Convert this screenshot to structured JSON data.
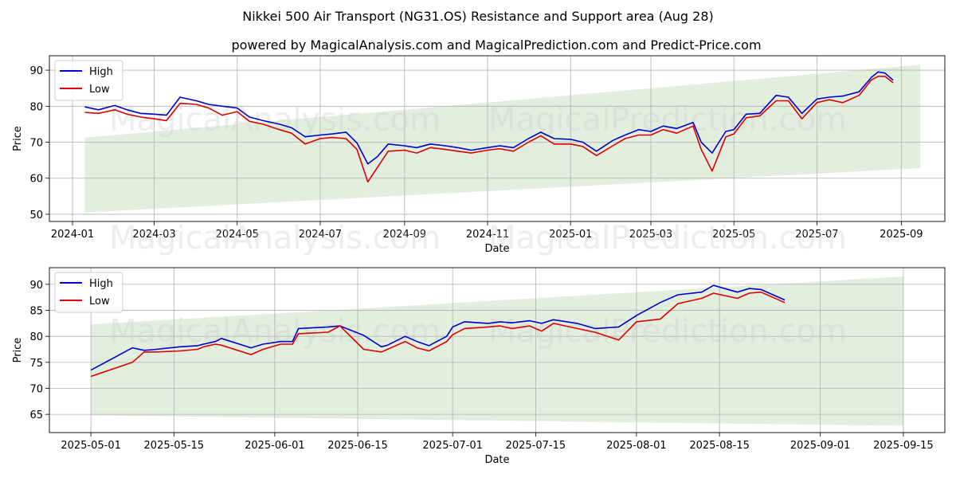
{
  "title": "Nikkei 500 Air Transport (NG31.OS) Resistance and Support area (Aug 28)",
  "subtitle": "powered by MagicalAnalysis.com and MagicalPrediction.com and Predict-Price.com",
  "watermarks": [
    "MagicalAnalysis.com",
    "MagicalPrediction.com"
  ],
  "colors": {
    "high": "#0000cc",
    "low": "#dd0000",
    "band": "#d9ead3"
  },
  "chart_data": [
    {
      "type": "line",
      "xlabel": "Date",
      "ylabel": "Price",
      "legend_position": "top-left",
      "grid": true,
      "xlim": [
        "2023-12-15",
        "2025-10-03"
      ],
      "ylim": [
        48,
        94
      ],
      "x_ticks": [
        "2024-01",
        "2024-03",
        "2024-05",
        "2024-07",
        "2024-09",
        "2024-11",
        "2025-01",
        "2025-03",
        "2025-05",
        "2025-07",
        "2025-09"
      ],
      "y_ticks": [
        50,
        60,
        70,
        80,
        90
      ],
      "band": {
        "x": [
          "2024-01-10",
          "2025-09-15"
        ],
        "upper": [
          71.3,
          91.5
        ],
        "lower": [
          50.5,
          62.8
        ]
      },
      "series": [
        {
          "name": "High",
          "x": [
            "2024-01-10",
            "2024-01-20",
            "2024-02-01",
            "2024-02-10",
            "2024-02-20",
            "2024-03-01",
            "2024-03-10",
            "2024-03-20",
            "2024-04-01",
            "2024-04-10",
            "2024-04-20",
            "2024-05-01",
            "2024-05-10",
            "2024-05-20",
            "2024-06-01",
            "2024-06-10",
            "2024-06-20",
            "2024-07-01",
            "2024-07-10",
            "2024-07-20",
            "2024-07-28",
            "2024-08-05",
            "2024-08-12",
            "2024-08-20",
            "2024-09-01",
            "2024-09-10",
            "2024-09-20",
            "2024-10-01",
            "2024-10-10",
            "2024-10-20",
            "2024-11-01",
            "2024-11-10",
            "2024-11-20",
            "2024-12-01",
            "2024-12-10",
            "2024-12-20",
            "2025-01-01",
            "2025-01-10",
            "2025-01-20",
            "2025-02-01",
            "2025-02-10",
            "2025-02-20",
            "2025-03-01",
            "2025-03-10",
            "2025-03-20",
            "2025-04-01",
            "2025-04-07",
            "2025-04-15",
            "2025-04-25",
            "2025-05-01",
            "2025-05-10",
            "2025-05-20",
            "2025-06-01",
            "2025-06-10",
            "2025-06-20",
            "2025-07-01",
            "2025-07-10",
            "2025-07-20",
            "2025-08-01",
            "2025-08-10",
            "2025-08-15",
            "2025-08-20",
            "2025-08-26"
          ],
          "values": [
            79.8,
            79.0,
            80.2,
            79.0,
            78.0,
            77.8,
            77.5,
            82.5,
            81.5,
            80.5,
            80.0,
            79.5,
            77.0,
            76.0,
            75.0,
            74.0,
            71.5,
            72.0,
            72.3,
            72.8,
            69.8,
            64.0,
            66.0,
            69.5,
            69.0,
            68.5,
            69.5,
            69.0,
            68.5,
            67.8,
            68.5,
            69.0,
            68.5,
            71.0,
            72.8,
            71.0,
            70.8,
            70.0,
            67.5,
            70.5,
            72.0,
            73.5,
            73.0,
            74.5,
            73.8,
            75.5,
            70.0,
            67.0,
            73.0,
            73.5,
            77.8,
            78.0,
            83.0,
            82.5,
            78.0,
            82.0,
            82.5,
            82.8,
            84.0,
            88.0,
            89.5,
            89.2,
            87.2
          ]
        },
        {
          "name": "Low",
          "x": [
            "2024-01-10",
            "2024-01-20",
            "2024-02-01",
            "2024-02-10",
            "2024-02-20",
            "2024-03-01",
            "2024-03-10",
            "2024-03-20",
            "2024-04-01",
            "2024-04-10",
            "2024-04-20",
            "2024-05-01",
            "2024-05-10",
            "2024-05-20",
            "2024-06-01",
            "2024-06-10",
            "2024-06-20",
            "2024-07-01",
            "2024-07-10",
            "2024-07-20",
            "2024-07-28",
            "2024-08-05",
            "2024-08-12",
            "2024-08-20",
            "2024-09-01",
            "2024-09-10",
            "2024-09-20",
            "2024-10-01",
            "2024-10-10",
            "2024-10-20",
            "2024-11-01",
            "2024-11-10",
            "2024-11-20",
            "2024-12-01",
            "2024-12-10",
            "2024-12-20",
            "2025-01-01",
            "2025-01-10",
            "2025-01-20",
            "2025-02-01",
            "2025-02-10",
            "2025-02-20",
            "2025-03-01",
            "2025-03-10",
            "2025-03-20",
            "2025-04-01",
            "2025-04-07",
            "2025-04-15",
            "2025-04-25",
            "2025-05-01",
            "2025-05-10",
            "2025-05-20",
            "2025-06-01",
            "2025-06-10",
            "2025-06-20",
            "2025-07-01",
            "2025-07-10",
            "2025-07-20",
            "2025-08-01",
            "2025-08-10",
            "2025-08-15",
            "2025-08-20",
            "2025-08-26"
          ],
          "values": [
            78.3,
            78.0,
            79.0,
            77.8,
            77.0,
            76.5,
            76.0,
            80.8,
            80.5,
            79.5,
            77.5,
            78.5,
            75.8,
            75.0,
            73.5,
            72.5,
            69.5,
            71.0,
            71.3,
            71.0,
            68.0,
            59.0,
            63.0,
            67.5,
            67.8,
            67.0,
            68.5,
            68.0,
            67.5,
            67.0,
            67.8,
            68.2,
            67.5,
            70.0,
            71.8,
            69.5,
            69.5,
            68.8,
            66.3,
            69.0,
            71.0,
            72.0,
            72.0,
            73.5,
            72.5,
            74.5,
            68.0,
            62.0,
            71.5,
            72.3,
            76.8,
            77.3,
            81.5,
            81.5,
            76.5,
            81.0,
            81.8,
            81.0,
            83.0,
            87.3,
            88.3,
            88.3,
            86.5
          ]
        }
      ]
    },
    {
      "type": "line",
      "xlabel": "Date",
      "ylabel": "Price",
      "legend_position": "top-left",
      "grid": true,
      "xlim": [
        "2025-04-24",
        "2025-09-22"
      ],
      "ylim": [
        61.5,
        93.2
      ],
      "x_ticks": [
        "2025-05-01",
        "2025-05-15",
        "2025-06-01",
        "2025-06-15",
        "2025-07-01",
        "2025-07-15",
        "2025-08-01",
        "2025-08-15",
        "2025-09-01",
        "2025-09-15"
      ],
      "y_ticks": [
        65,
        70,
        75,
        80,
        85,
        90
      ],
      "band": {
        "x": [
          "2025-05-01",
          "2025-09-15"
        ],
        "upper": [
          82.3,
          91.5
        ],
        "lower": [
          64.8,
          62.8
        ]
      },
      "series": [
        {
          "name": "High",
          "x": [
            "2025-05-01",
            "2025-05-08",
            "2025-05-10",
            "2025-05-12",
            "2025-05-16",
            "2025-05-19",
            "2025-05-20",
            "2025-05-22",
            "2025-05-23",
            "2025-05-28",
            "2025-05-30",
            "2025-06-02",
            "2025-06-04",
            "2025-06-05",
            "2025-06-10",
            "2025-06-12",
            "2025-06-16",
            "2025-06-19",
            "2025-06-20",
            "2025-06-23",
            "2025-06-25",
            "2025-06-27",
            "2025-06-30",
            "2025-07-01",
            "2025-07-03",
            "2025-07-07",
            "2025-07-09",
            "2025-07-11",
            "2025-07-14",
            "2025-07-16",
            "2025-07-18",
            "2025-07-22",
            "2025-07-25",
            "2025-07-29",
            "2025-08-01",
            "2025-08-05",
            "2025-08-08",
            "2025-08-12",
            "2025-08-14",
            "2025-08-18",
            "2025-08-20",
            "2025-08-22",
            "2025-08-26"
          ],
          "values": [
            73.5,
            77.8,
            77.3,
            77.5,
            78.0,
            78.2,
            78.5,
            79.0,
            79.6,
            77.8,
            78.5,
            79.0,
            79.0,
            81.5,
            81.8,
            82.0,
            80.2,
            78.0,
            78.3,
            80.0,
            79.0,
            78.2,
            80.0,
            81.8,
            82.8,
            82.5,
            82.8,
            82.6,
            83.0,
            82.5,
            83.2,
            82.5,
            81.5,
            81.8,
            84.0,
            86.5,
            88.0,
            88.5,
            89.8,
            88.5,
            89.2,
            89.0,
            87.0
          ]
        },
        {
          "name": "Low",
          "x": [
            "2025-05-01",
            "2025-05-08",
            "2025-05-10",
            "2025-05-12",
            "2025-05-16",
            "2025-05-19",
            "2025-05-20",
            "2025-05-22",
            "2025-05-23",
            "2025-05-28",
            "2025-05-30",
            "2025-06-02",
            "2025-06-04",
            "2025-06-05",
            "2025-06-10",
            "2025-06-12",
            "2025-06-16",
            "2025-06-19",
            "2025-06-20",
            "2025-06-23",
            "2025-06-25",
            "2025-06-27",
            "2025-06-30",
            "2025-07-01",
            "2025-07-03",
            "2025-07-07",
            "2025-07-09",
            "2025-07-11",
            "2025-07-14",
            "2025-07-16",
            "2025-07-18",
            "2025-07-22",
            "2025-07-25",
            "2025-07-29",
            "2025-08-01",
            "2025-08-05",
            "2025-08-08",
            "2025-08-12",
            "2025-08-14",
            "2025-08-18",
            "2025-08-20",
            "2025-08-22",
            "2025-08-26"
          ],
          "values": [
            72.3,
            75.0,
            77.0,
            77.0,
            77.2,
            77.5,
            78.0,
            78.5,
            78.3,
            76.5,
            77.5,
            78.5,
            78.5,
            80.5,
            80.8,
            82.0,
            77.5,
            77.0,
            77.5,
            79.0,
            77.8,
            77.2,
            79.0,
            80.3,
            81.5,
            81.8,
            82.0,
            81.5,
            82.0,
            81.0,
            82.5,
            81.5,
            80.8,
            79.3,
            82.8,
            83.3,
            86.3,
            87.3,
            88.3,
            87.3,
            88.3,
            88.5,
            86.5
          ]
        }
      ]
    }
  ]
}
